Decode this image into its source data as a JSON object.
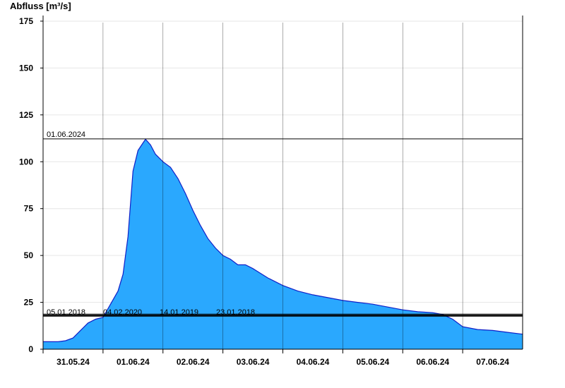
{
  "chart_data": {
    "type": "area",
    "ylabel": "Abfluss [m³/s]",
    "xlabel": "",
    "title": "",
    "ylim": [
      0,
      178
    ],
    "yticks": [
      0,
      25,
      50,
      75,
      100,
      125,
      150,
      175
    ],
    "xlim": [
      "2024-05-31T00:00",
      "2024-06-08T00:00"
    ],
    "xticks": [
      {
        "date": "2024-05-31T12:00",
        "label": "31.05.24"
      },
      {
        "date": "2024-06-01T12:00",
        "label": "01.06.24"
      },
      {
        "date": "2024-06-02T12:00",
        "label": "02.06.24"
      },
      {
        "date": "2024-06-03T12:00",
        "label": "03.06.24"
      },
      {
        "date": "2024-06-04T12:00",
        "label": "04.06.24"
      },
      {
        "date": "2024-06-05T12:00",
        "label": "05.06.24"
      },
      {
        "date": "2024-06-06T12:00",
        "label": "06.06.24"
      },
      {
        "date": "2024-06-07T12:00",
        "label": "07.06.24"
      }
    ],
    "grid": true,
    "fill_color": "#2aa8fe",
    "line_color": "#1020c8",
    "series": [
      {
        "x": [
          "2024-05-31T00:00",
          "2024-05-31T03:00",
          "2024-05-31T06:00",
          "2024-05-31T09:00",
          "2024-05-31T12:00",
          "2024-05-31T15:00",
          "2024-05-31T18:00",
          "2024-05-31T21:00",
          "2024-06-01T00:00",
          "2024-06-01T03:00",
          "2024-06-01T06:00",
          "2024-06-01T08:00",
          "2024-06-01T10:00",
          "2024-06-01T12:00",
          "2024-06-01T14:00",
          "2024-06-01T15:00",
          "2024-06-01T17:00",
          "2024-06-01T19:00",
          "2024-06-01T21:00",
          "2024-06-02T00:00",
          "2024-06-02T03:00",
          "2024-06-02T06:00",
          "2024-06-02T09:00",
          "2024-06-02T12:00",
          "2024-06-02T15:00",
          "2024-06-02T18:00",
          "2024-06-02T21:00",
          "2024-06-03T00:00",
          "2024-06-03T03:00",
          "2024-06-03T06:00",
          "2024-06-03T09:00",
          "2024-06-03T12:00",
          "2024-06-03T18:00",
          "2024-06-04T00:00",
          "2024-06-04T06:00",
          "2024-06-04T12:00",
          "2024-06-04T18:00",
          "2024-06-05T00:00",
          "2024-06-05T06:00",
          "2024-06-05T12:00",
          "2024-06-05T18:00",
          "2024-06-06T00:00",
          "2024-06-06T06:00",
          "2024-06-06T12:00",
          "2024-06-06T16:00",
          "2024-06-06T20:00",
          "2024-06-07T00:00",
          "2024-06-07T06:00",
          "2024-06-07T12:00",
          "2024-06-07T18:00",
          "2024-06-08T00:00"
        ],
        "values": [
          4,
          4,
          4,
          4.5,
          6,
          10,
          14,
          16,
          17,
          24,
          31,
          40,
          60,
          95,
          106,
          108,
          112,
          109,
          104,
          100,
          97,
          91,
          83,
          74,
          66,
          59,
          54,
          50,
          48,
          45,
          45,
          43,
          38,
          34,
          31,
          29,
          27.5,
          26,
          25,
          24,
          22.5,
          21,
          20,
          19.5,
          18.5,
          16,
          12,
          10.5,
          10,
          9,
          8
        ]
      }
    ],
    "reference_lines": [
      {
        "label": "01.06.2024",
        "value": 112.2
      },
      {
        "label": "05.01.2018",
        "value": 17.6
      },
      {
        "label": "04.02.2020",
        "value": 17.9
      },
      {
        "label": "14.01.2019",
        "value": 18.2
      },
      {
        "label": "23.01.2018",
        "value": 18.7
      }
    ]
  }
}
